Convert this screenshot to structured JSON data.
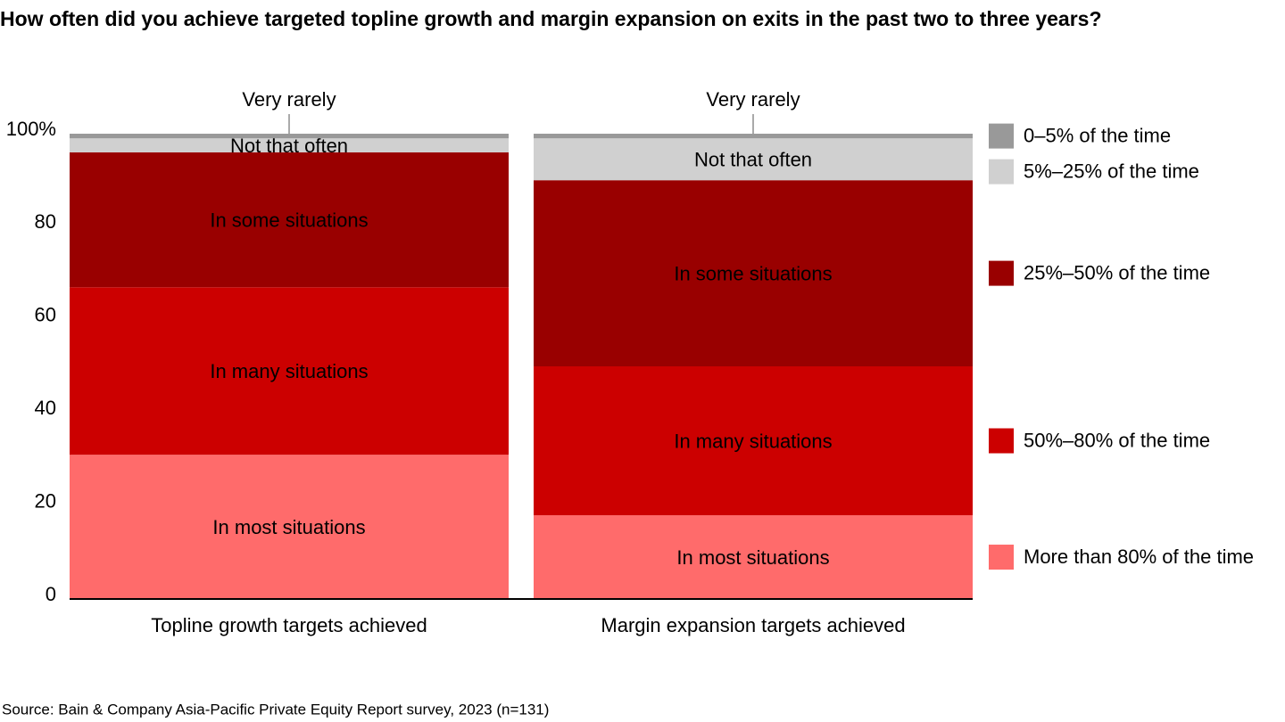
{
  "chart_data": {
    "type": "stacked_bar",
    "title": "How often did you achieve targeted topline growth and margin expansion on exits in the past two to three years?",
    "categories": [
      "Topline growth targets achieved",
      "Margin expansion targets achieved"
    ],
    "series": [
      {
        "name": "More than 80% of the time",
        "label": "In most situations",
        "color": "#ff6b6b",
        "values": [
          31,
          18
        ]
      },
      {
        "name": "50%–80% of the time",
        "label": "In many situations",
        "color": "#cc0000",
        "values": [
          36,
          32
        ]
      },
      {
        "name": "25%–50% of the time",
        "label": "In some situations",
        "color": "#990000",
        "values": [
          29,
          40
        ]
      },
      {
        "name": "5%–25% of the time",
        "label": "Not that often",
        "color": "#d0d0d0",
        "values": [
          3,
          9
        ]
      },
      {
        "name": "0–5% of the time",
        "label": "Very rarely",
        "color": "#999999",
        "values": [
          1,
          1
        ]
      }
    ],
    "ylim": [
      0,
      100
    ],
    "yticks": [
      0,
      20,
      40,
      60,
      80,
      {
        "value": 100,
        "label": "100%"
      }
    ],
    "source": "Source: Bain & Company Asia-Pacific Private Equity Report survey, 2023 (n=131)"
  }
}
